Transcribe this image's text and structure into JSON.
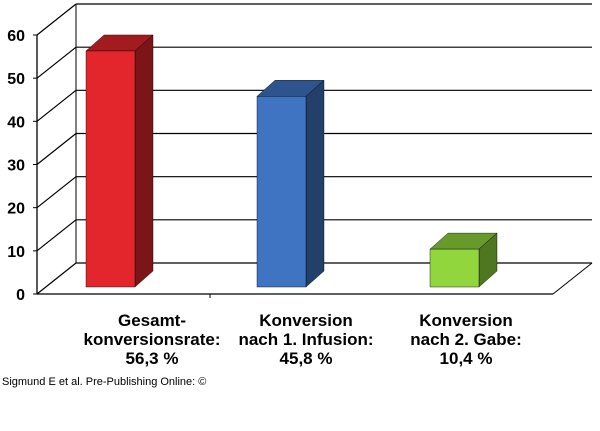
{
  "chart_data": {
    "type": "bar",
    "style": "3d",
    "title": "",
    "xlabel": "",
    "ylabel": "",
    "ylim": [
      0,
      60
    ],
    "yticks": [
      0,
      10,
      20,
      30,
      40,
      50,
      60
    ],
    "grid": true,
    "categories": [
      {
        "lines": [
          "Gesamt-",
          "konversionsrate:",
          "56,3 %"
        ],
        "value": 56.3,
        "color": "#e2262b"
      },
      {
        "lines": [
          "Konversion",
          "nach 1. Infusion:",
          "45,8 %"
        ],
        "value": 45.8,
        "color": "#3f74c2"
      },
      {
        "lines": [
          "Konversion",
          "nach 2. Gabe:",
          "10,4 %"
        ],
        "value": 10.4,
        "color": "#90d63c"
      }
    ]
  },
  "footer": {
    "credit": "Sigmund E et al. Pre-Publishing Online: ©"
  }
}
